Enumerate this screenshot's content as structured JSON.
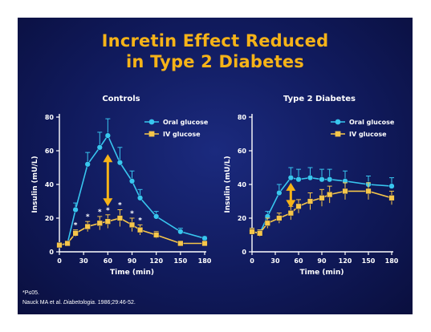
{
  "title_lines": [
    "Incretin Effect Reduced",
    "in Type 2 Diabetes"
  ],
  "footnote": {
    "p_value": "*P≤05.",
    "reference_prefix": "Nauck MA et al. ",
    "reference_journal": "Diabetologia",
    "reference_suffix": ". 1986;29:46-52."
  },
  "colors": {
    "oral": "#38c6ef",
    "iv": "#f6c64a",
    "arrow": "#f6b318",
    "title": "#f6b318",
    "background": "#101a5c"
  },
  "chart_data": [
    {
      "type": "line",
      "title": "Controls",
      "xlabel": "Time (min)",
      "ylabel": "Insulin (mU/L)",
      "xlim": [
        0,
        180
      ],
      "ylim": [
        0,
        80
      ],
      "xticks": [
        0,
        30,
        60,
        90,
        120,
        150,
        180
      ],
      "yticks": [
        0,
        20,
        40,
        60,
        80
      ],
      "grid": false,
      "legend": "top-right",
      "series": [
        {
          "name": "Oral glucose",
          "x": [
            0,
            10,
            20,
            35,
            50,
            60,
            75,
            90,
            100,
            120,
            150,
            180
          ],
          "y": [
            4,
            5,
            25,
            52,
            62,
            69,
            53,
            42,
            32,
            21,
            12,
            8
          ],
          "err": [
            1,
            1,
            4,
            7,
            9,
            10,
            9,
            6,
            5,
            3,
            2,
            1
          ]
        },
        {
          "name": "IV glucose",
          "x": [
            0,
            10,
            20,
            35,
            50,
            60,
            75,
            90,
            100,
            120,
            150,
            180
          ],
          "y": [
            4,
            5,
            11,
            15,
            17,
            18,
            20,
            16,
            13,
            10,
            5,
            5
          ],
          "err": [
            1,
            1,
            2,
            3,
            4,
            4,
            5,
            4,
            3,
            2,
            1,
            1
          ]
        }
      ],
      "significance": {
        "label": "*",
        "x": [
          20,
          35,
          50,
          60,
          75,
          90,
          100
        ]
      },
      "arrow": {
        "x": 60,
        "y_top": 58,
        "y_bottom": 27
      }
    },
    {
      "type": "line",
      "title": "Type 2 Diabetes",
      "xlabel": "Time (min)",
      "ylabel": "Insulin (mU/L)",
      "xlim": [
        0,
        180
      ],
      "ylim": [
        0,
        80
      ],
      "xticks": [
        0,
        30,
        60,
        90,
        120,
        150,
        180
      ],
      "yticks": [
        0,
        20,
        40,
        60,
        80
      ],
      "grid": false,
      "legend": "top-right",
      "series": [
        {
          "name": "Oral glucose",
          "x": [
            0,
            10,
            20,
            35,
            50,
            60,
            75,
            90,
            100,
            120,
            150,
            180
          ],
          "y": [
            12,
            11,
            21,
            35,
            44,
            43,
            44,
            43,
            43,
            42,
            40,
            39
          ],
          "err": [
            2,
            2,
            3,
            5,
            6,
            6,
            6,
            6,
            6,
            6,
            5,
            5
          ]
        },
        {
          "name": "IV glucose",
          "x": [
            0,
            10,
            20,
            35,
            50,
            60,
            75,
            90,
            100,
            120,
            150,
            180
          ],
          "y": [
            12,
            11,
            17,
            20,
            23,
            27,
            30,
            32,
            34,
            36,
            36,
            32
          ],
          "err": [
            2,
            2,
            3,
            3,
            4,
            4,
            5,
            5,
            5,
            5,
            5,
            4
          ]
        }
      ],
      "arrow": {
        "x": 50,
        "y_top": 41,
        "y_bottom": 26
      }
    }
  ]
}
